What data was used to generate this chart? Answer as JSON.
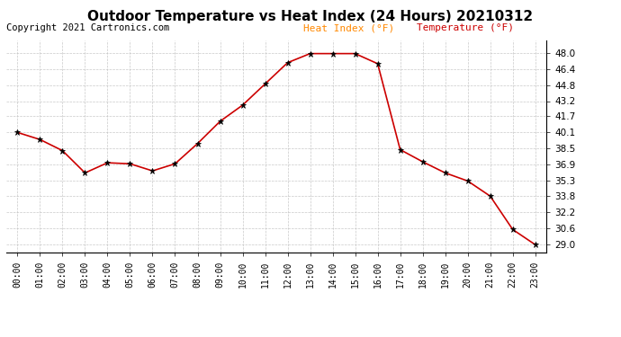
{
  "title": "Outdoor Temperature vs Heat Index (24 Hours) 20210312",
  "copyright": "Copyright 2021 Cartronics.com",
  "legend_heat": "Heat Index (°F)",
  "legend_temp": "Temperature (°F)",
  "x_labels": [
    "00:00",
    "01:00",
    "02:00",
    "03:00",
    "04:00",
    "05:00",
    "06:00",
    "07:00",
    "08:00",
    "09:00",
    "10:00",
    "11:00",
    "12:00",
    "13:00",
    "14:00",
    "15:00",
    "16:00",
    "17:00",
    "18:00",
    "19:00",
    "20:00",
    "21:00",
    "22:00",
    "23:00"
  ],
  "temperature": [
    40.1,
    39.4,
    38.3,
    36.1,
    37.1,
    37.0,
    36.3,
    37.0,
    39.0,
    41.2,
    42.8,
    44.9,
    47.0,
    47.9,
    47.9,
    47.9,
    46.9,
    38.4,
    37.2,
    36.1,
    35.3,
    33.8,
    30.5,
    29.0
  ],
  "ylim_min": 28.2,
  "ylim_max": 49.2,
  "yticks": [
    29.0,
    30.6,
    32.2,
    33.8,
    35.3,
    36.9,
    38.5,
    40.1,
    41.7,
    43.2,
    44.8,
    46.4,
    48.0
  ],
  "line_color": "#cc0000",
  "marker_color": "#000000",
  "heat_index_color": "#ff8800",
  "temp_legend_color": "#cc0000",
  "bg_color": "#ffffff",
  "grid_color": "#bbbbbb",
  "title_fontsize": 11,
  "copyright_fontsize": 7.5,
  "legend_fontsize": 8,
  "tick_fontsize": 7,
  "ytick_fontsize": 7.5
}
